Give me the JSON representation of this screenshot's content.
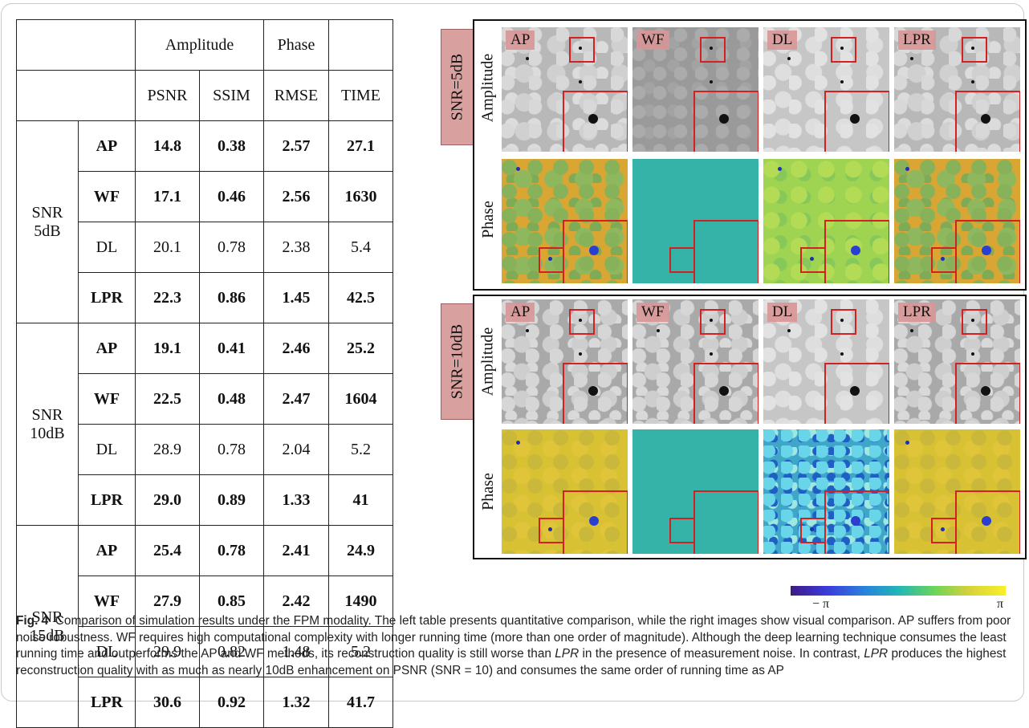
{
  "table": {
    "header_row1": [
      "",
      "Amplitude",
      "Phase",
      ""
    ],
    "header_row2": [
      "PSNR",
      "SSIM",
      "RMSE",
      "TIME"
    ],
    "groups": [
      {
        "label": "SNR\n5dB",
        "rows": [
          {
            "method": "AP",
            "psnr": "14.8",
            "ssim": "0.38",
            "rmse": "2.57",
            "time": "27.1",
            "bold": true
          },
          {
            "method": "WF",
            "psnr": "17.1",
            "ssim": "0.46",
            "rmse": "2.56",
            "time": "1630",
            "bold": true
          },
          {
            "method": "DL",
            "psnr": "20.1",
            "ssim": "0.78",
            "rmse": "2.38",
            "time": "5.4",
            "bold": false
          },
          {
            "method": "LPR",
            "psnr": "22.3",
            "ssim": "0.86",
            "rmse": "1.45",
            "time": "42.5",
            "bold": true
          }
        ]
      },
      {
        "label": "SNR\n10dB",
        "rows": [
          {
            "method": "AP",
            "psnr": "19.1",
            "ssim": "0.41",
            "rmse": "2.46",
            "time": "25.2",
            "bold": true
          },
          {
            "method": "WF",
            "psnr": "22.5",
            "ssim": "0.48",
            "rmse": "2.47",
            "time": "1604",
            "bold": true
          },
          {
            "method": "DL",
            "psnr": "28.9",
            "ssim": "0.78",
            "rmse": "2.04",
            "time": "5.2",
            "bold": false
          },
          {
            "method": "LPR",
            "psnr": "29.0",
            "ssim": "0.89",
            "rmse": "1.33",
            "time": "41",
            "bold": true
          }
        ]
      },
      {
        "label": "SNR\n15dB",
        "rows": [
          {
            "method": "AP",
            "psnr": "25.4",
            "ssim": "0.78",
            "rmse": "2.41",
            "time": "24.9",
            "bold": true
          },
          {
            "method": "WF",
            "psnr": "27.9",
            "ssim": "0.85",
            "rmse": "2.42",
            "time": "1490",
            "bold": true
          },
          {
            "method": "DL",
            "psnr": "29.9",
            "ssim": "0.82",
            "rmse": "1.48",
            "time": "5.2",
            "bold": false
          },
          {
            "method": "LPR",
            "psnr": "30.6",
            "ssim": "0.92",
            "rmse": "1.32",
            "time": "41.7",
            "bold": true
          }
        ]
      }
    ]
  },
  "figure": {
    "panels": [
      {
        "snr_label": "SNR=5dB",
        "row_labels": [
          "Amplitude",
          "Phase"
        ],
        "methods": [
          "AP",
          "WF",
          "DL",
          "LPR"
        ]
      },
      {
        "snr_label": "SNR=10dB",
        "row_labels": [
          "Amplitude",
          "Phase"
        ],
        "methods": [
          "AP",
          "WF",
          "DL",
          "LPR"
        ]
      }
    ],
    "colorbar": {
      "min_label": "− π",
      "max_label": "π"
    }
  },
  "caption": {
    "label": "Fig. 4",
    "text_part1": "Comparison of simulation results under the FPM modality. The left table presents quantitative comparison, while the right images show visual comparison. AP suffers from poor noise robustness. WF requires high computational complexity with longer running time (more than one order of magnitude). Although the deep learning technique consumes the least running time and outperforms the AP and WF methods, its reconstruction quality is still worse than ",
    "lpr1": "LPR",
    "text_part2": " in the presence of measurement noise. In contrast, ",
    "lpr2": "LPR",
    "text_part3": " produces the highest reconstruction quality with as much as nearly 10dB enhancement on PSNR (SNR = 10) and consumes the same order of running time as AP"
  }
}
